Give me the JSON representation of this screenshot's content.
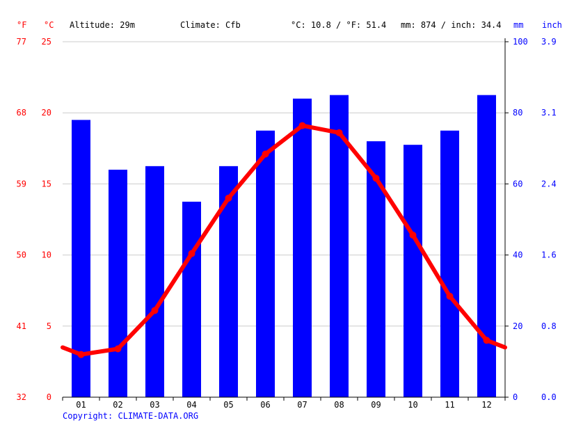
{
  "header": {
    "temp_unit_f": "°F",
    "temp_unit_c": "°C",
    "altitude": "Altitude: 29m",
    "climate": "Climate: Cfb",
    "avg_temp": "°C: 10.8 / °F: 51.4",
    "precip_total": "mm: 874 / inch: 34.4",
    "precip_unit_mm": "mm",
    "precip_unit_inch": "inch"
  },
  "footer": {
    "copyright": "Copyright: CLIMATE-DATA.ORG"
  },
  "colors": {
    "temperature": "#ff0000",
    "precipitation": "#0000ff",
    "grid": "#cccccc",
    "axis": "#000000"
  },
  "chart_data": {
    "type": "bar",
    "categories": [
      "01",
      "02",
      "03",
      "04",
      "05",
      "06",
      "07",
      "08",
      "09",
      "10",
      "11",
      "12"
    ],
    "series": [
      {
        "type": "bar",
        "axis": "right",
        "unit": "mm",
        "values": [
          78,
          64,
          65,
          55,
          65,
          75,
          84,
          85,
          72,
          71,
          75,
          85
        ]
      },
      {
        "type": "line",
        "axis": "left",
        "unit": "°C",
        "values": [
          3.0,
          3.4,
          6.1,
          10.1,
          14.0,
          17.1,
          19.1,
          18.6,
          15.4,
          11.4,
          7.1,
          4.0
        ],
        "left_edge": 3.5,
        "right_edge": 3.5
      }
    ],
    "y_left_celsius": {
      "ylim": [
        0,
        25
      ],
      "ticks": [
        0,
        5,
        10,
        15,
        20,
        25
      ]
    },
    "y_left_fahrenheit_ticks": [
      32,
      41,
      50,
      59,
      68,
      77
    ],
    "y_right_mm": {
      "ylim": [
        0,
        100
      ],
      "ticks": [
        0,
        20,
        40,
        60,
        80,
        100
      ]
    },
    "y_right_inch_ticks": [
      "0.0",
      "0.8",
      "1.6",
      "2.4",
      "3.1",
      "3.9"
    ],
    "grid": true
  }
}
